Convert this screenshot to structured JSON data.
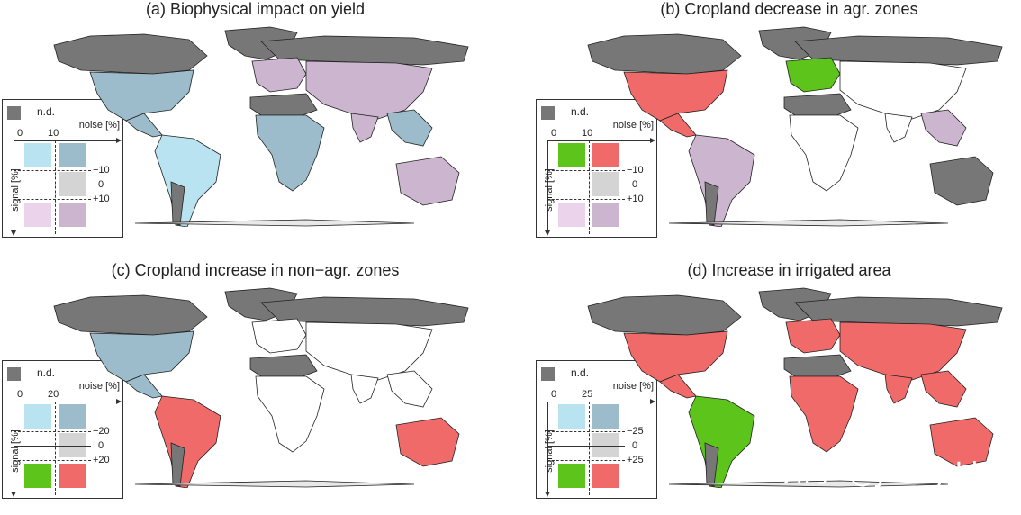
{
  "panels": [
    {
      "title": "(a) Biophysical impact on yield",
      "legend": {
        "nd": "n.d.",
        "noise": "noise [%]",
        "signal": "signal [%]",
        "n0": "0",
        "n1": "10",
        "t_neg": "−10",
        "t_zero": "0",
        "t_pos": "+10",
        "swatches": {
          "tl": "#b9e3f0",
          "tr": "#9cbccb",
          "mr": "#d4d4d4",
          "bl": "#ecd3ec",
          "br": "#cbb5cf"
        }
      },
      "map_colors": {
        "na": "#9cbccb",
        "sa": "#b9e3f0",
        "eu": "#cbb5cf",
        "as": "#cbb5cf",
        "af": "#9cbccb",
        "au": "#cbb5cf",
        "se": "#9cbccb"
      }
    },
    {
      "title": "(b) Cropland decrease in agr. zones",
      "legend": {
        "nd": "n.d.",
        "noise": "noise [%]",
        "signal": "signal [%]",
        "n0": "0",
        "n1": "10",
        "t_neg": "−10",
        "t_zero": "0",
        "t_pos": "+10",
        "swatches": {
          "tl": "#5cc41a",
          "tr": "#f06a6a",
          "mr": "#d4d4d4",
          "bl": "#ecd3ec",
          "br": "#cbb5cf"
        }
      },
      "map_colors": {
        "na": "#f06a6a",
        "sa": "#cbb5cf",
        "eu": "#5cc41a",
        "as": "#ffffff",
        "af": "#ffffff",
        "au": "#777777",
        "se": "#cbb5cf"
      }
    },
    {
      "title": "(c) Cropland increase in non−agr. zones",
      "legend": {
        "nd": "n.d.",
        "noise": "noise [%]",
        "signal": "signal [%]",
        "n0": "0",
        "n1": "20",
        "t_neg": "−20",
        "t_zero": "0",
        "t_pos": "+20",
        "swatches": {
          "tl": "#b9e3f0",
          "tr": "#9cbccb",
          "mr": "#d4d4d4",
          "bl": "#5cc41a",
          "br": "#f06a6a"
        }
      },
      "map_colors": {
        "na": "#9cbccb",
        "sa": "#f06a6a",
        "eu": "#ffffff",
        "as": "#ffffff",
        "af": "#ffffff",
        "au": "#f06a6a",
        "se": "#ffffff"
      }
    },
    {
      "title": "(d) Increase in irrigated area",
      "legend": {
        "nd": "n.d.",
        "noise": "noise [%]",
        "signal": "signal [%]",
        "n0": "0",
        "n1": "25",
        "t_neg": "−25",
        "t_zero": "0",
        "t_pos": "+25",
        "swatches": {
          "tl": "#b9e3f0",
          "tr": "#9cbccb",
          "mr": "#d4d4d4",
          "bl": "#5cc41a",
          "br": "#f06a6a"
        }
      },
      "map_colors": {
        "na": "#f06a6a",
        "sa": "#5cc41a",
        "eu": "#f06a6a",
        "as": "#f06a6a",
        "af": "#f06a6a",
        "au": "#f06a6a",
        "se": "#f06a6a"
      }
    }
  ],
  "watermark": "知乎 @Jonty.Li"
}
